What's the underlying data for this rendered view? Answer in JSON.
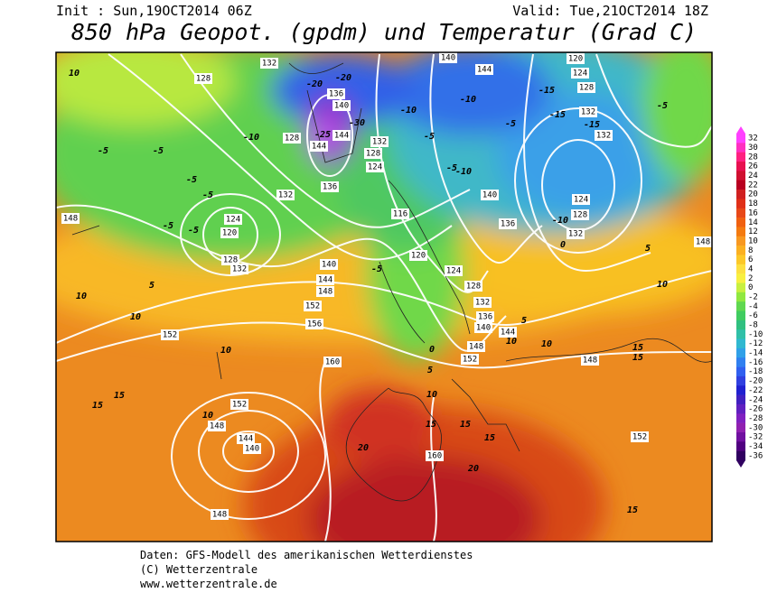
{
  "header": {
    "init": "Init : Sun,19OCT2014 06Z",
    "valid": "Valid: Tue,21OCT2014 18Z",
    "title": "850 hPa Geopot. (gpdm) und Temperatur (Grad C)"
  },
  "footer": {
    "line1": "Daten: GFS-Modell des amerikanischen Wetterdienstes",
    "line2": "(C) Wetterzentrale",
    "line3": "www.wetterzentrale.de"
  },
  "colorbar": {
    "ticks": [
      32,
      30,
      28,
      26,
      24,
      22,
      20,
      18,
      16,
      14,
      12,
      10,
      8,
      6,
      4,
      2,
      0,
      -2,
      -4,
      -6,
      -8,
      -10,
      -12,
      -14,
      -16,
      -18,
      -20,
      -22,
      -24,
      -26,
      -28,
      -30,
      -32,
      -34,
      -36
    ],
    "colors": [
      "#ff40ff",
      "#ff30c0",
      "#ff2080",
      "#e81050",
      "#d01030",
      "#b80020",
      "#d02020",
      "#e03018",
      "#e84818",
      "#f06010",
      "#f47a10",
      "#f89820",
      "#fbb020",
      "#fcc828",
      "#fde040",
      "#f8f040",
      "#c8f040",
      "#90e840",
      "#60d850",
      "#40cc60",
      "#30c080",
      "#30c0a8",
      "#30b8d0",
      "#30a0e8",
      "#3080f0",
      "#3060f0",
      "#3040e0",
      "#2020d0",
      "#4020c0",
      "#6020c0",
      "#8020c0",
      "#9020b0",
      "#7010a0",
      "#500080",
      "#300060"
    ]
  },
  "map": {
    "geopotential_labels": [
      128,
      132,
      136,
      140,
      144,
      144,
      136,
      132,
      128,
      124,
      128,
      132,
      124,
      120,
      128,
      132,
      140,
      144,
      148,
      152,
      156,
      116,
      120,
      124,
      128,
      132,
      136,
      140,
      144,
      148,
      152,
      160,
      152,
      148,
      144,
      140,
      148,
      160,
      152,
      148,
      144,
      140,
      120,
      124,
      128,
      132,
      132,
      140,
      136,
      124,
      128,
      132,
      148,
      152,
      148
    ],
    "temperature_labels": [
      10,
      -5,
      -5,
      -5,
      -5,
      -5,
      -5,
      5,
      10,
      10,
      10,
      15,
      15,
      10,
      20,
      20,
      15,
      15,
      15,
      15,
      10,
      5,
      10,
      10,
      15,
      15,
      10,
      5,
      5,
      0,
      -5,
      -5,
      -10,
      -10,
      -5,
      -10,
      -5,
      -15,
      -15,
      -15,
      -5,
      -10,
      0,
      -20,
      -20,
      -25,
      -30,
      -10
    ]
  }
}
